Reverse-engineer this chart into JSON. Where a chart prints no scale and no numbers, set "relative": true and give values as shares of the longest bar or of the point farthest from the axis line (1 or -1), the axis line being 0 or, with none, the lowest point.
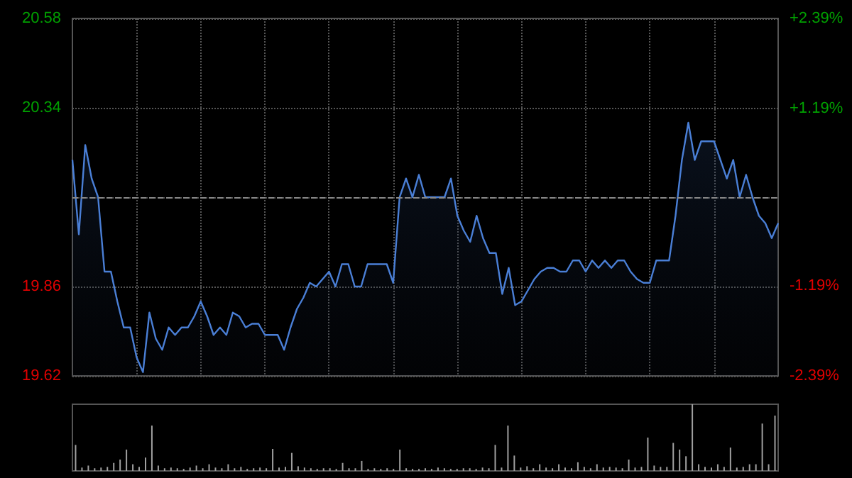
{
  "chart_data": [
    {
      "type": "area",
      "categories": [
        null,
        null,
        null,
        null,
        null,
        null,
        null,
        null,
        null,
        null,
        null,
        null,
        null,
        null,
        null,
        null,
        null,
        null,
        null,
        null,
        null,
        null,
        null,
        null,
        null,
        null,
        null,
        null,
        null,
        null,
        null,
        null,
        null,
        null,
        null,
        null,
        null,
        null,
        null,
        null,
        null,
        null,
        null,
        null,
        null,
        null,
        null,
        null,
        null,
        null,
        null,
        null,
        null,
        null,
        null,
        null,
        null,
        null,
        null,
        null,
        null,
        null,
        null,
        null,
        null,
        null,
        null,
        null,
        null,
        null,
        null,
        null,
        null,
        null,
        null,
        null,
        null,
        null,
        null,
        null,
        null,
        null,
        null,
        null,
        null,
        null,
        null,
        null,
        null,
        null,
        null,
        null,
        null,
        null,
        null,
        null,
        null,
        null,
        null,
        null,
        null,
        null,
        null,
        null,
        null,
        null,
        null,
        null,
        null,
        null,
        null
      ],
      "series": [
        {
          "color": "#4a7fd6",
          "values": [
            20.2,
            20.0,
            20.24,
            20.15,
            20.1,
            19.9,
            19.9,
            19.82,
            19.75,
            19.75,
            19.67,
            19.63,
            19.79,
            19.72,
            19.69,
            19.75,
            19.73,
            19.75,
            19.75,
            19.78,
            19.82,
            19.78,
            19.73,
            19.75,
            19.73,
            19.79,
            19.78,
            19.75,
            19.76,
            19.76,
            19.73,
            19.73,
            19.73,
            19.69,
            19.75,
            19.8,
            19.83,
            19.87,
            19.86,
            19.88,
            19.9,
            19.86,
            19.92,
            19.92,
            19.86,
            19.86,
            19.92,
            19.92,
            19.92,
            19.92,
            19.87,
            20.1,
            20.15,
            20.1,
            20.16,
            20.1,
            20.1,
            20.1,
            20.1,
            20.15,
            20.05,
            20.01,
            19.98,
            20.05,
            19.99,
            19.95,
            19.95,
            19.84,
            19.91,
            19.81,
            19.82,
            19.85,
            19.88,
            19.9,
            19.91,
            19.91,
            19.9,
            19.9,
            19.93,
            19.93,
            19.9,
            19.93,
            19.91,
            19.93,
            19.91,
            19.93,
            19.93,
            19.9,
            19.88,
            19.87,
            19.87,
            19.93,
            19.93,
            19.93,
            20.05,
            20.2,
            20.3,
            20.2,
            20.25,
            20.25,
            20.25,
            20.2,
            20.15,
            20.2,
            20.1,
            20.16,
            20.1,
            20.05,
            20.03,
            19.99,
            20.03
          ]
        }
      ],
      "ylim": [
        19.62,
        20.58
      ],
      "yticks": [
        19.62,
        19.86,
        {
          "value": 20.1,
          "label": null
        },
        20.34,
        20.58
      ],
      "y2lim": [
        -2.39,
        2.39
      ],
      "y2ticks": [
        {
          "value": -2.39,
          "label": "-2.39%"
        },
        {
          "value": -1.19,
          "label": "-1.19%"
        },
        {
          "value": 1.19,
          "label": "+1.19%"
        },
        {
          "value": 2.39,
          "label": "+2.39%"
        }
      ],
      "ref_lines": [
        {
          "axis": "y",
          "value": 20.1,
          "color": "#888888",
          "line_style": "dashed"
        }
      ],
      "grid": true,
      "line_style": "solid"
    },
    {
      "type": "bar",
      "relative": true,
      "categories": [
        null,
        null,
        null,
        null,
        null,
        null,
        null,
        null,
        null,
        null,
        null,
        null,
        null,
        null,
        null,
        null,
        null,
        null,
        null,
        null,
        null,
        null,
        null,
        null,
        null,
        null,
        null,
        null,
        null,
        null,
        null,
        null,
        null,
        null,
        null,
        null,
        null,
        null,
        null,
        null,
        null,
        null,
        null,
        null,
        null,
        null,
        null,
        null,
        null,
        null,
        null,
        null,
        null,
        null,
        null,
        null,
        null,
        null,
        null,
        null,
        null,
        null,
        null,
        null,
        null,
        null,
        null,
        null,
        null,
        null,
        null,
        null,
        null,
        null,
        null,
        null,
        null,
        null,
        null,
        null,
        null,
        null,
        null,
        null,
        null,
        null,
        null,
        null,
        null,
        null,
        null,
        null,
        null,
        null,
        null,
        null,
        null,
        null,
        null,
        null,
        null,
        null,
        null,
        null,
        null,
        null,
        null,
        null,
        null,
        null,
        null
      ],
      "series": [
        {
          "color": "#a0a0a0",
          "values": [
            0.39,
            0.05,
            0.08,
            0.04,
            0.05,
            0.06,
            0.12,
            0.17,
            0.32,
            0.1,
            0.06,
            0.2,
            0.68,
            0.08,
            0.04,
            0.05,
            0.04,
            0.03,
            0.05,
            0.08,
            0.04,
            0.1,
            0.05,
            0.04,
            0.1,
            0.04,
            0.06,
            0.03,
            0.04,
            0.05,
            0.04,
            0.33,
            0.05,
            0.06,
            0.27,
            0.07,
            0.05,
            0.04,
            0.03,
            0.04,
            0.04,
            0.03,
            0.12,
            0.04,
            0.04,
            0.15,
            0.03,
            0.04,
            0.03,
            0.04,
            0.03,
            0.32,
            0.04,
            0.03,
            0.03,
            0.04,
            0.03,
            0.05,
            0.04,
            0.03,
            0.03,
            0.04,
            0.04,
            0.03,
            0.05,
            0.04,
            0.39,
            0.05,
            0.68,
            0.23,
            0.05,
            0.07,
            0.04,
            0.1,
            0.05,
            0.04,
            0.1,
            0.05,
            0.04,
            0.13,
            0.06,
            0.04,
            0.1,
            0.05,
            0.06,
            0.05,
            0.04,
            0.17,
            0.05,
            0.06,
            0.5,
            0.08,
            0.06,
            0.06,
            0.42,
            0.32,
            0.22,
            1.0,
            0.1,
            0.06,
            0.05,
            0.1,
            0.06,
            0.35,
            0.05,
            0.06,
            0.1,
            0.1,
            0.71,
            0.1,
            0.83
          ]
        }
      ],
      "grid": false
    }
  ]
}
